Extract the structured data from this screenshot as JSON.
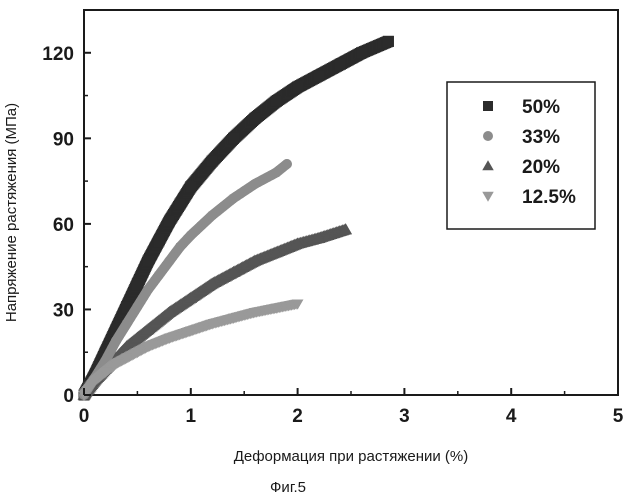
{
  "chart_data": {
    "type": "scatter",
    "xlabel": "Деформация при растяжении (%)",
    "ylabel": "Напряжение растяжения (МПа)",
    "xlim": [
      0,
      5
    ],
    "ylim": [
      0,
      135
    ],
    "x_ticks": [
      "0",
      "1",
      "2",
      "3",
      "4",
      "5"
    ],
    "y_ticks": [
      "0",
      "30",
      "60",
      "90",
      "120"
    ],
    "x_tick_values": [
      0,
      1,
      2,
      3,
      4,
      5
    ],
    "y_tick_values": [
      0,
      30,
      60,
      90,
      120
    ],
    "legend_position": "right",
    "grid": false,
    "series": [
      {
        "name": "50%",
        "marker": "square",
        "color": "#2b2b2b",
        "x": [
          0,
          0.1,
          0.2,
          0.3,
          0.4,
          0.5,
          0.6,
          0.7,
          0.8,
          0.9,
          1.0,
          1.2,
          1.4,
          1.6,
          1.8,
          2.0,
          2.2,
          2.4,
          2.6,
          2.85
        ],
        "y": [
          0,
          7,
          15,
          23,
          31,
          39,
          47,
          54,
          61,
          67,
          73,
          82,
          90,
          97,
          103,
          108,
          112,
          116,
          120,
          124
        ]
      },
      {
        "name": "33%",
        "marker": "circle",
        "color": "#8c8c8c",
        "x": [
          0,
          0.1,
          0.2,
          0.3,
          0.4,
          0.5,
          0.6,
          0.7,
          0.8,
          0.9,
          1.0,
          1.2,
          1.4,
          1.6,
          1.8,
          1.9
        ],
        "y": [
          0,
          6,
          12,
          19,
          25,
          31,
          37,
          42,
          47,
          52,
          56,
          63,
          69,
          74,
          78,
          81
        ]
      },
      {
        "name": "20%",
        "marker": "triangle-up",
        "color": "#555555",
        "x": [
          0,
          0.1,
          0.2,
          0.3,
          0.4,
          0.5,
          0.6,
          0.8,
          1.0,
          1.2,
          1.4,
          1.6,
          1.8,
          2.0,
          2.2,
          2.45
        ],
        "y": [
          0,
          5,
          9,
          13,
          17,
          20,
          23,
          29,
          34,
          39,
          43,
          47,
          50,
          53,
          55,
          58
        ]
      },
      {
        "name": "12.5%",
        "marker": "triangle-down",
        "color": "#999999",
        "x": [
          0,
          0.1,
          0.2,
          0.3,
          0.4,
          0.5,
          0.6,
          0.8,
          1.0,
          1.2,
          1.4,
          1.6,
          1.8,
          2.0
        ],
        "y": [
          0,
          5,
          8,
          11,
          13,
          15,
          17,
          20,
          22.5,
          25,
          27,
          29,
          30.5,
          32
        ]
      }
    ]
  },
  "caption": "Фиг.5"
}
